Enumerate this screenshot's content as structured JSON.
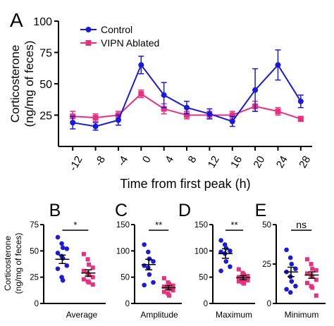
{
  "colors": {
    "control": "#1a1adc",
    "vipn": "#e8307f",
    "axis": "#000000"
  },
  "chart_data": [
    {
      "panel": "A",
      "type": "line",
      "ylabel_lines": [
        "Corticosterone",
        "(ng/mg of feces)"
      ],
      "xlabel": "Time from first peak (h)",
      "x": [
        -12,
        -8,
        -4,
        0,
        4,
        8,
        12,
        16,
        20,
        24,
        28
      ],
      "xticks": [
        "-12",
        "-8",
        "-4",
        "0",
        "4",
        "8",
        "12",
        "16",
        "20",
        "24",
        "28"
      ],
      "yticks": [
        "25",
        "50",
        "75",
        "100"
      ],
      "ylim": [
        0,
        100
      ],
      "legend_position": "top-left",
      "series": [
        {
          "name": "Control",
          "color": "#1a1adc",
          "marker": "circle",
          "values": [
            19,
            16,
            21,
            65,
            41,
            31,
            26,
            20,
            45,
            65,
            36
          ],
          "errors": [
            5,
            3,
            4,
            7,
            10,
            5,
            4,
            4,
            17,
            12,
            5
          ]
        },
        {
          "name": "VIPN Ablated",
          "color": "#e8307f",
          "marker": "square",
          "values": [
            24,
            23,
            25,
            42,
            30,
            25,
            25,
            25,
            32,
            28,
            22
          ],
          "errors": [
            4,
            3,
            3,
            3,
            4,
            3,
            3,
            3,
            4,
            3,
            2
          ]
        }
      ]
    },
    {
      "panel": "B",
      "type": "scatter",
      "xlabel": "Average",
      "ylabel_lines": [
        "Corticosterone",
        "(ng/mg of feces)"
      ],
      "yticks": [
        "0",
        "25",
        "50",
        "75"
      ],
      "ylim": [
        0,
        75
      ],
      "significance": "*",
      "control": {
        "mean": 42,
        "sem": 4,
        "points": [
          63,
          57,
          53,
          52,
          48,
          45,
          43,
          36,
          33,
          25,
          22
        ]
      },
      "vipn": {
        "mean": 29,
        "sem": 3,
        "points": [
          47,
          42,
          37,
          34,
          31,
          29,
          27,
          25,
          23,
          21,
          20,
          18
        ]
      }
    },
    {
      "panel": "C",
      "type": "scatter",
      "xlabel": "Amplitude",
      "yticks": [
        "0",
        "50",
        "100",
        "150"
      ],
      "ylim": [
        0,
        150
      ],
      "significance": "**",
      "control": {
        "mean": 74,
        "sem": 10,
        "points": [
          112,
          98,
          85,
          80,
          72,
          68,
          55,
          40,
          35
        ]
      },
      "vipn": {
        "mean": 30,
        "sem": 4,
        "points": [
          48,
          40,
          37,
          34,
          32,
          30,
          28,
          25,
          22,
          19,
          15
        ]
      }
    },
    {
      "panel": "D",
      "type": "scatter",
      "xlabel": "Maximum",
      "yticks": [
        "0",
        "50",
        "100",
        "150"
      ],
      "ylim": [
        0,
        150
      ],
      "significance": "**",
      "control": {
        "mean": 95,
        "sem": 9,
        "points": [
          120,
          112,
          105,
          100,
          98,
          95,
          80,
          70,
          62
        ]
      },
      "vipn": {
        "mean": 49,
        "sem": 4,
        "points": [
          65,
          58,
          55,
          52,
          50,
          48,
          46,
          44,
          42,
          40,
          38
        ]
      }
    },
    {
      "panel": "E",
      "type": "scatter",
      "xlabel": "Minimum",
      "yticks": [
        "0",
        "25",
        "50"
      ],
      "ylim": [
        0,
        50
      ],
      "significance": "ns",
      "control": {
        "mean": 20,
        "sem": 3,
        "points": [
          34,
          29,
          25,
          22,
          20,
          17,
          14,
          11,
          9,
          7
        ]
      },
      "vipn": {
        "mean": 18,
        "sem": 2,
        "points": [
          28,
          25,
          22,
          21,
          19,
          18,
          17,
          15,
          13,
          11,
          10,
          5
        ]
      }
    }
  ]
}
